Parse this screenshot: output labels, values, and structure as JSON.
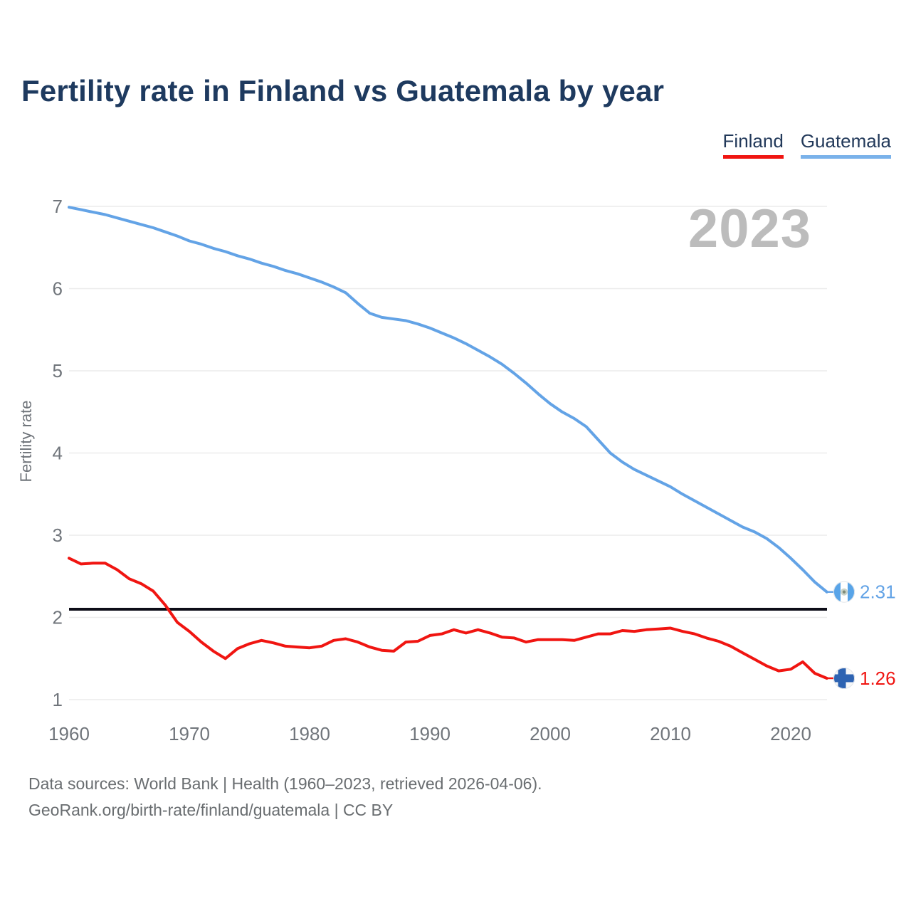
{
  "title": "Fertility rate in Finland vs Guatemala by year",
  "legend": {
    "finland_label": "Finland",
    "finland_color": "#f01511",
    "guatemala_label": "Guatemala",
    "guatemala_underline_color": "#7ab2ea"
  },
  "chart_data": {
    "type": "line",
    "title": "Fertility rate in Finland vs Guatemala by year",
    "ylabel": "Fertility rate",
    "xlabel": "",
    "grid": true,
    "legend_position": "top-right",
    "watermark": "2023",
    "watermark_color": "#bcbcbc",
    "gridline_color": "#ececec",
    "tick_color": "#70757b",
    "ylim": [
      1,
      7
    ],
    "xlim": [
      1960,
      2023
    ],
    "y_ticks": [
      7,
      6,
      5,
      4,
      3,
      2,
      1
    ],
    "x_ticks": [
      1960,
      1970,
      1980,
      1990,
      2000,
      2010,
      2020
    ],
    "reference_line": {
      "value": 2.1,
      "color": "#0d0d18"
    },
    "years": [
      1960,
      1961,
      1962,
      1963,
      1964,
      1965,
      1966,
      1967,
      1968,
      1969,
      1970,
      1971,
      1972,
      1973,
      1974,
      1975,
      1976,
      1977,
      1978,
      1979,
      1980,
      1981,
      1982,
      1983,
      1984,
      1985,
      1986,
      1987,
      1988,
      1989,
      1990,
      1991,
      1992,
      1993,
      1994,
      1995,
      1996,
      1997,
      1998,
      1999,
      2000,
      2001,
      2002,
      2003,
      2004,
      2005,
      2006,
      2007,
      2008,
      2009,
      2010,
      2011,
      2012,
      2013,
      2014,
      2015,
      2016,
      2017,
      2018,
      2019,
      2020,
      2021,
      2022,
      2023
    ],
    "series": [
      {
        "name": "Finland",
        "color": "#f01511",
        "values": [
          2.72,
          2.65,
          2.66,
          2.66,
          2.58,
          2.47,
          2.41,
          2.32,
          2.15,
          1.94,
          1.83,
          1.7,
          1.59,
          1.5,
          1.62,
          1.68,
          1.72,
          1.69,
          1.65,
          1.64,
          1.63,
          1.65,
          1.72,
          1.74,
          1.7,
          1.64,
          1.6,
          1.59,
          1.7,
          1.71,
          1.78,
          1.8,
          1.85,
          1.81,
          1.85,
          1.81,
          1.76,
          1.75,
          1.7,
          1.73,
          1.73,
          1.73,
          1.72,
          1.76,
          1.8,
          1.8,
          1.84,
          1.83,
          1.85,
          1.86,
          1.87,
          1.83,
          1.8,
          1.75,
          1.71,
          1.65,
          1.57,
          1.49,
          1.41,
          1.35,
          1.37,
          1.46,
          1.32,
          1.26
        ]
      },
      {
        "name": "Guatemala",
        "color": "#63a3e6",
        "values": [
          6.99,
          6.96,
          6.93,
          6.9,
          6.86,
          6.82,
          6.78,
          6.74,
          6.69,
          6.64,
          6.58,
          6.54,
          6.49,
          6.45,
          6.4,
          6.36,
          6.31,
          6.27,
          6.22,
          6.18,
          6.13,
          6.08,
          6.02,
          5.95,
          5.82,
          5.7,
          5.65,
          5.63,
          5.61,
          5.57,
          5.52,
          5.46,
          5.4,
          5.33,
          5.25,
          5.17,
          5.08,
          4.97,
          4.85,
          4.72,
          4.6,
          4.5,
          4.42,
          4.32,
          4.16,
          4.0,
          3.89,
          3.8,
          3.73,
          3.66,
          3.59,
          3.5,
          3.42,
          3.34,
          3.26,
          3.18,
          3.1,
          3.04,
          2.96,
          2.85,
          2.72,
          2.58,
          2.43,
          2.31
        ]
      }
    ],
    "end_labels": [
      {
        "series": "Guatemala",
        "value": "2.31",
        "icon": "guatemala-flag-icon"
      },
      {
        "series": "Finland",
        "value": "1.26",
        "icon": "finland-flag-icon"
      }
    ],
    "flags": {
      "guatemala": {
        "band_color": "#58a4e8",
        "field_color": "#ffffff",
        "emblem_color": "#c9d2c7",
        "emblem_dot_color": "#7f8b79"
      },
      "finland": {
        "cross_color": "#2d63b2",
        "field_color": "#f6f7f8"
      }
    }
  },
  "footer": {
    "line1": "Data sources: World Bank | Health (1960–2023, retrieved 2026-04-06).",
    "line2": "GeoRank.org/birth-rate/finland/guatemala | CC BY"
  }
}
